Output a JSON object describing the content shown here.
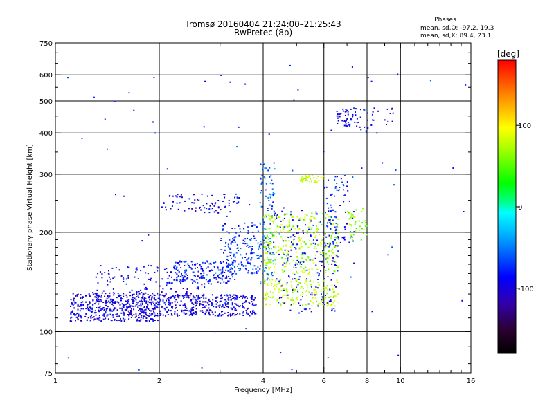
{
  "chart_data": {
    "type": "scatter",
    "title": "Tromsø 20160404 21:24:00–21:25:43",
    "subtitle": "RwPretec (8p)",
    "xlabel": "Frequency [MHz]",
    "ylabel": "Stationary phase Virtual Height [km]",
    "x_scale": "log",
    "y_scale": "log",
    "xlim": [
      1,
      16
    ],
    "ylim": [
      75,
      750
    ],
    "x_ticks": [
      1,
      2,
      4,
      6,
      8,
      10,
      16
    ],
    "x_tick_labels": [
      "1",
      "2",
      "4",
      "6",
      "8",
      "10",
      "16"
    ],
    "x_minor_ticks": [
      3,
      5,
      7,
      9,
      11,
      12,
      13,
      14,
      15
    ],
    "y_ticks": [
      75,
      100,
      200,
      300,
      400,
      500,
      600,
      750
    ],
    "y_tick_labels": [
      "75",
      "100",
      "200",
      "300",
      "400",
      "500",
      "600",
      "750"
    ],
    "grid": true,
    "stats": {
      "heading": "Phases",
      "line_o": "mean, sd,O: -97.2, 19.3",
      "line_x": "mean, sd,X:  89.4, 23.1"
    },
    "colorbar": {
      "label": "[deg]",
      "range": [
        -180,
        180
      ],
      "ticks": [
        100,
        0,
        -100
      ],
      "tick_labels": [
        "100",
        "0",
        "-100"
      ]
    },
    "clusters": [
      {
        "x": [
          1.1,
          2.0
        ],
        "y": [
          108,
          132
        ],
        "phase": -100,
        "n": 430
      },
      {
        "x": [
          1.3,
          2.7
        ],
        "y": [
          112,
          160
        ],
        "phase": -95,
        "n": 220
      },
      {
        "x": [
          2.0,
          3.8
        ],
        "y": [
          112,
          130
        ],
        "phase": -100,
        "n": 330
      },
      {
        "x": [
          2.2,
          3.3
        ],
        "y": [
          140,
          165
        ],
        "phase": -85,
        "n": 160
      },
      {
        "x": [
          2.0,
          3.4
        ],
        "y": [
          230,
          262
        ],
        "phase": -100,
        "n": 80
      },
      {
        "x": [
          3.0,
          3.9
        ],
        "y": [
          150,
          215
        ],
        "phase": -75,
        "n": 170
      },
      {
        "x": [
          3.9,
          4.3
        ],
        "y": [
          140,
          330
        ],
        "phase": -60,
        "n": 110
      },
      {
        "x": [
          4.0,
          6.6
        ],
        "y": [
          120,
          145
        ],
        "phase": 75,
        "n": 170
      },
      {
        "x": [
          4.0,
          6.6
        ],
        "y": [
          150,
          230
        ],
        "phase": 70,
        "n": 330
      },
      {
        "x": [
          4.3,
          6.6
        ],
        "y": [
          115,
          240
        ],
        "phase": -90,
        "n": 180
      },
      {
        "x": [
          5.1,
          6.0
        ],
        "y": [
          285,
          300
        ],
        "phase": 85,
        "n": 40
      },
      {
        "x": [
          6.0,
          7.3
        ],
        "y": [
          180,
          300
        ],
        "phase": -80,
        "n": 80
      },
      {
        "x": [
          6.5,
          7.5
        ],
        "y": [
          420,
          480
        ],
        "phase": -100,
        "n": 50
      },
      {
        "x": [
          7.4,
          9.5
        ],
        "y": [
          400,
          480
        ],
        "phase": -100,
        "n": 30
      },
      {
        "x": [
          7.0,
          8.0
        ],
        "y": [
          190,
          240
        ],
        "phase": 60,
        "n": 40
      },
      {
        "x": [
          1.0,
          16.0
        ],
        "y": [
          75,
          650
        ],
        "phase": -80,
        "n": 80
      }
    ]
  }
}
